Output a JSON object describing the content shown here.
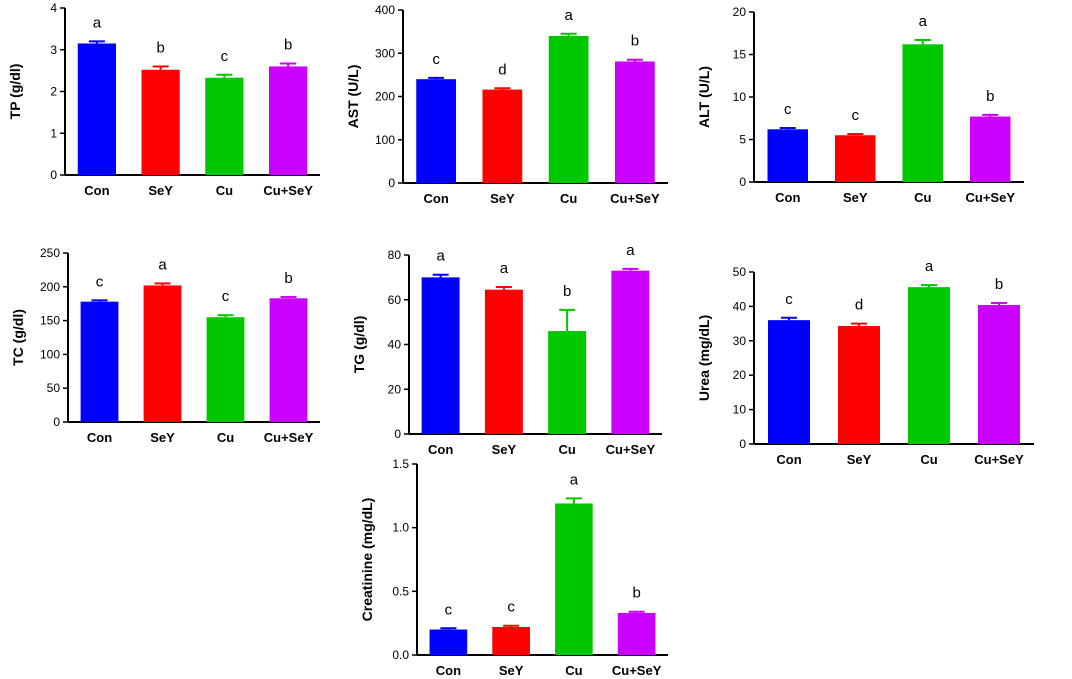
{
  "colors": {
    "Con": "#0000ff",
    "SeY": "#ff0000",
    "Cu": "#00c800",
    "Cu+SeY": "#cc00ff",
    "axis": "#000000"
  },
  "chart_data": [
    {
      "type": "bar",
      "id": "tp",
      "ylabel": "TP (g/dl)",
      "xlabel": "",
      "title": "",
      "categories": [
        "Con",
        "SeY",
        "Cu",
        "Cu+SeY"
      ],
      "values": [
        3.15,
        2.52,
        2.33,
        2.6
      ],
      "errors": [
        0.05,
        0.08,
        0.07,
        0.07
      ],
      "significance": [
        "a",
        "b",
        "c",
        "b"
      ],
      "ylim": [
        0,
        4
      ],
      "yticks": [
        "0",
        "1",
        "2",
        "3",
        "4"
      ],
      "ytick_values": [
        0,
        1,
        2,
        3,
        4
      ]
    },
    {
      "type": "bar",
      "id": "ast",
      "ylabel": "AST (U/L)",
      "xlabel": "",
      "title": "",
      "categories": [
        "Con",
        "SeY",
        "Cu",
        "Cu+SeY"
      ],
      "values": [
        240,
        216,
        340,
        281
      ],
      "errors": [
        3,
        3,
        5,
        4
      ],
      "significance": [
        "c",
        "d",
        "a",
        "b"
      ],
      "ylim": [
        0,
        400
      ],
      "yticks": [
        "0",
        "100",
        "200",
        "300",
        "400"
      ],
      "ytick_values": [
        0,
        100,
        200,
        300,
        400
      ]
    },
    {
      "type": "bar",
      "id": "alt",
      "ylabel": "ALT (U/L)",
      "xlabel": "",
      "title": "",
      "categories": [
        "Con",
        "SeY",
        "Cu",
        "Cu+SeY"
      ],
      "values": [
        6.2,
        5.5,
        16.2,
        7.7
      ],
      "errors": [
        0.15,
        0.15,
        0.5,
        0.2
      ],
      "significance": [
        "c",
        "c",
        "a",
        "b"
      ],
      "ylim": [
        0,
        20
      ],
      "yticks": [
        "0",
        "5",
        "10",
        "15",
        "20"
      ],
      "ytick_values": [
        0,
        5,
        10,
        15,
        20
      ]
    },
    {
      "type": "bar",
      "id": "tc",
      "ylabel": "TC (g/dl)",
      "xlabel": "",
      "title": "",
      "categories": [
        "Con",
        "SeY",
        "Cu",
        "Cu+SeY"
      ],
      "values": [
        178,
        202,
        155,
        183
      ],
      "errors": [
        2,
        3,
        3,
        2
      ],
      "significance": [
        "c",
        "a",
        "c",
        "b"
      ],
      "ylim": [
        0,
        250
      ],
      "yticks": [
        "0",
        "50",
        "100",
        "150",
        "200",
        "250"
      ],
      "ytick_values": [
        0,
        50,
        100,
        150,
        200,
        250
      ]
    },
    {
      "type": "bar",
      "id": "tg",
      "ylabel": "TG (g/dl)",
      "xlabel": "",
      "title": "",
      "categories": [
        "Con",
        "SeY",
        "Cu",
        "Cu+SeY"
      ],
      "values": [
        70,
        64.5,
        46,
        73
      ],
      "errors": [
        1.2,
        1.2,
        9.5,
        0.8
      ],
      "significance": [
        "a",
        "a",
        "b",
        "a"
      ],
      "ylim": [
        0,
        80
      ],
      "yticks": [
        "0",
        "20",
        "40",
        "60",
        "80"
      ],
      "ytick_values": [
        0,
        20,
        40,
        60,
        80
      ]
    },
    {
      "type": "bar",
      "id": "urea",
      "ylabel": "Urea (mg/dL)",
      "xlabel": "",
      "title": "",
      "categories": [
        "Con",
        "SeY",
        "Cu",
        "Cu+SeY"
      ],
      "values": [
        36,
        34.3,
        45.6,
        40.4
      ],
      "errors": [
        0.7,
        0.7,
        0.6,
        0.6
      ],
      "significance": [
        "c",
        "d",
        "a",
        "b"
      ],
      "ylim": [
        0,
        50
      ],
      "yticks": [
        "0",
        "10",
        "20",
        "30",
        "40",
        "50"
      ],
      "ytick_values": [
        0,
        10,
        20,
        30,
        40,
        50
      ]
    },
    {
      "type": "bar",
      "id": "creatinine",
      "ylabel": "Creatinine (mg/dL)",
      "xlabel": "",
      "title": "",
      "categories": [
        "Con",
        "SeY",
        "Cu",
        "Cu+SeY"
      ],
      "values": [
        0.2,
        0.22,
        1.19,
        0.33
      ],
      "errors": [
        0.01,
        0.01,
        0.04,
        0.01
      ],
      "significance": [
        "c",
        "c",
        "a",
        "b"
      ],
      "ylim": [
        0,
        1.5
      ],
      "yticks": [
        "0.0",
        "0.5",
        "1.0",
        "1.5"
      ],
      "ytick_values": [
        0,
        0.5,
        1.0,
        1.5
      ]
    }
  ]
}
